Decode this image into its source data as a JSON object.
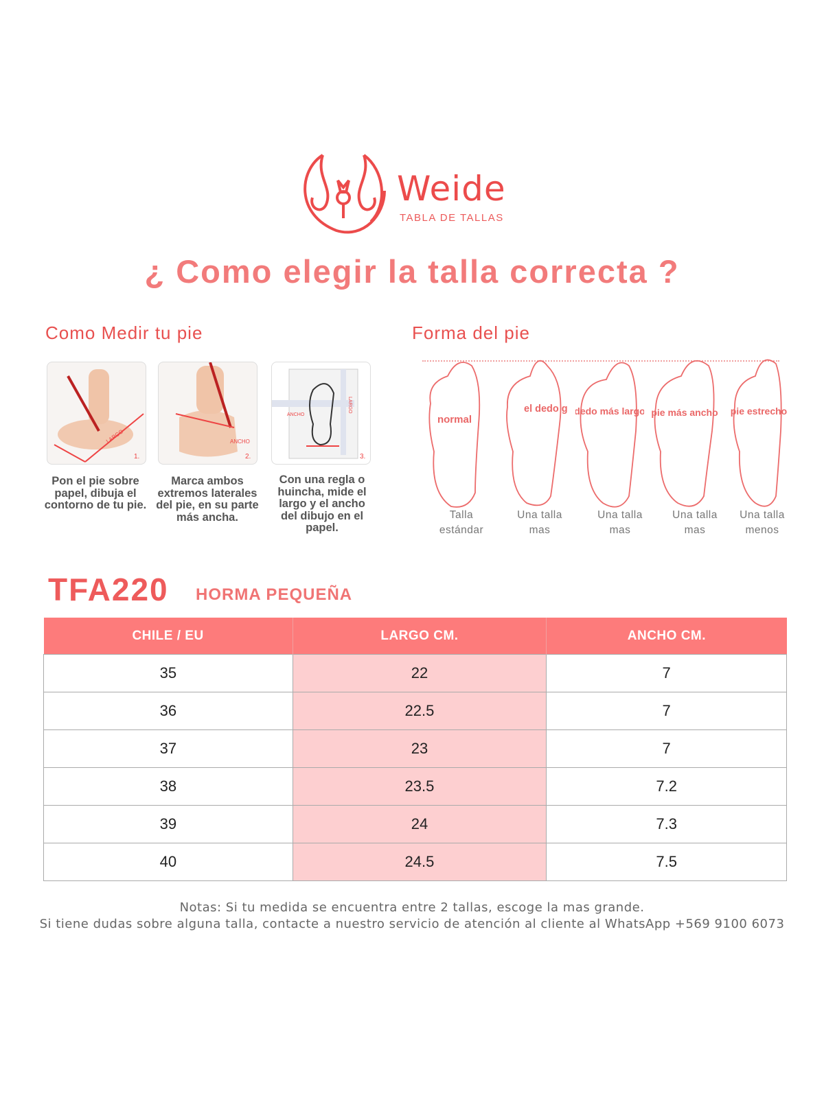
{
  "brand": {
    "name": "Weide",
    "subtitle": "TABLA DE TALLAS",
    "color": "#ec4b4b"
  },
  "title": "¿ Como elegir la talla correcta ?",
  "measure": {
    "heading": "Como Medir tu pie",
    "steps": [
      {
        "number": "1.",
        "label": "LARGO",
        "caption": "Pon el pie sobre papel, dibuja el contorno de tu pie."
      },
      {
        "number": "2.",
        "label": "ANCHO",
        "caption": "Marca ambos extremos laterales del pie, en su parte más ancha."
      },
      {
        "number": "3.",
        "label_width": "ANCHO",
        "label_length": "LARGO",
        "caption": "Con una regla o huincha, mide el largo y el ancho del dibujo en el papel."
      }
    ]
  },
  "shapes": {
    "heading": "Forma del pie",
    "items": [
      {
        "type": "normal",
        "recommendation": "Talla estándar"
      },
      {
        "type": "el dedo gordo afuera",
        "recommendation": "Una talla mas"
      },
      {
        "type": "dedo más largo",
        "recommendation": "Una talla mas"
      },
      {
        "type": "pie más ancho",
        "recommendation": "Una talla mas"
      },
      {
        "type": "pie estrecho",
        "recommendation": "Una talla menos"
      }
    ]
  },
  "model": {
    "code": "TFA220",
    "fit": "HORMA PEQUEÑA"
  },
  "table": {
    "headers": [
      "CHILE / EU",
      "LARGO CM.",
      "ANCHO CM."
    ],
    "rows": [
      [
        "35",
        "22",
        "7"
      ],
      [
        "36",
        "22.5",
        "7"
      ],
      [
        "37",
        "23",
        "7"
      ],
      [
        "38",
        "23.5",
        "7.2"
      ],
      [
        "39",
        "24",
        "7.3"
      ],
      [
        "40",
        "24.5",
        "7.5"
      ]
    ],
    "header_color": "#fd7b7b",
    "highlight_color": "#fdcfd0"
  },
  "notes": [
    "Notas: Si tu medida se encuentra entre 2 tallas, escoge la mas grande.",
    "Si tiene dudas sobre alguna talla, contacte a nuestro servicio de atención al cliente al WhatsApp +569 9100 6073"
  ]
}
